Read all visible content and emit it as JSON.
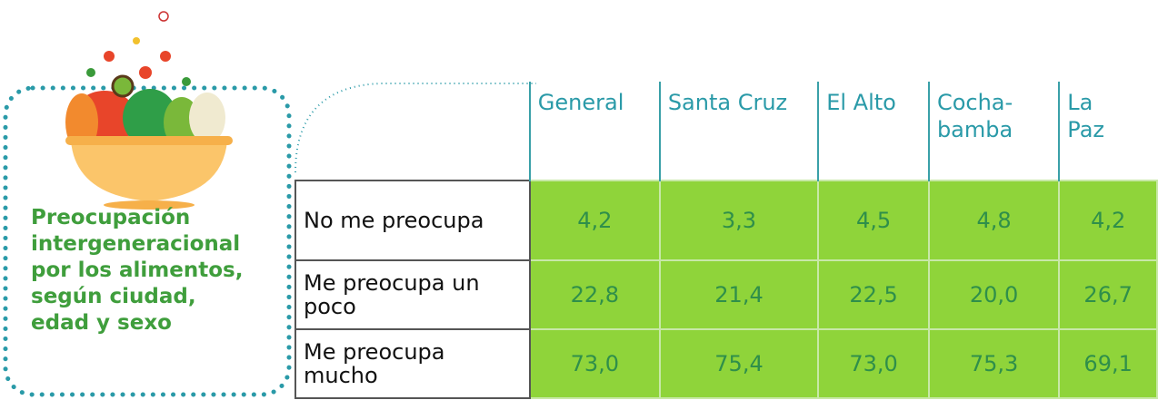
{
  "header": {
    "title_lines": [
      "Preocupación",
      "intergeneracional",
      "por los alimentos,",
      "según ciudad,",
      "edad y sexo"
    ]
  },
  "table": {
    "columns": [
      "General",
      "Santa Cruz",
      "El Alto",
      "Cocha-bamba",
      "La Paz"
    ],
    "rows": [
      {
        "label": "No me preocupa",
        "values": [
          "4,2",
          "3,3",
          "4,5",
          "4,8",
          "4,2"
        ]
      },
      {
        "label": "Me preocupa un poco",
        "values": [
          "22,8",
          "21,4",
          "22,5",
          "20,0",
          "26,7"
        ]
      },
      {
        "label": "Me preocupa mucho",
        "values": [
          "73,0",
          "75,4",
          "73,0",
          "75,3",
          "69,1"
        ]
      }
    ]
  }
}
